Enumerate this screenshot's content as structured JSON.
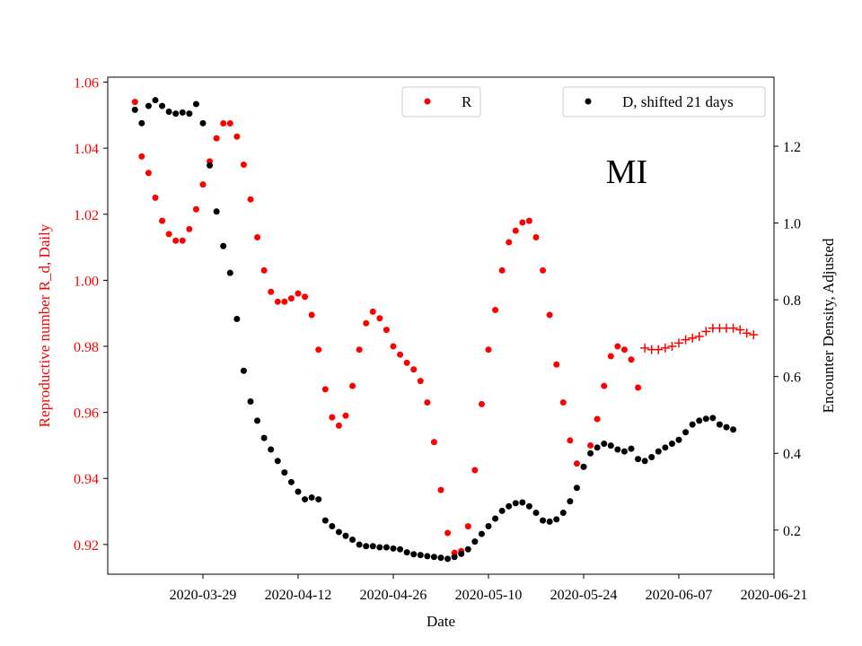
{
  "chart_data": {
    "type": "scatter",
    "annotation": "MI",
    "xlabel": "Date",
    "ylabel_left": "Reproductive number R_d, Daily",
    "ylabel_right": "Encounter Density, Adjusted",
    "x_ticks": [
      "2020-03-29",
      "2020-04-12",
      "2020-04-26",
      "2020-05-10",
      "2020-05-24",
      "2020-06-07",
      "2020-06-21"
    ],
    "y_left_ticks": [
      "0.92",
      "0.94",
      "0.96",
      "0.98",
      "1.00",
      "1.02",
      "1.04",
      "1.06"
    ],
    "y_right_ticks": [
      "0.2",
      "0.4",
      "0.6",
      "0.8",
      "1.0",
      "1.2"
    ],
    "ylim_left": [
      0.911,
      1.0615
    ],
    "ylim_right": [
      0.085,
      1.38
    ],
    "xlim": [
      "2020-03-15",
      "2020-06-21"
    ],
    "legend_left": {
      "label": "R",
      "color": "#ff0000",
      "placement": "top-center"
    },
    "legend_right": {
      "label": "D, shifted 21 days",
      "color": "#000000",
      "placement": "top-right"
    },
    "left_axis_color": "#ff0000",
    "right_axis_color": "#000000",
    "series": [
      {
        "name": "R",
        "axis": "left",
        "marker": "dot",
        "color": "#ff0000",
        "start_date": "2020-03-19",
        "values": [
          1.054,
          1.0375,
          1.0325,
          1.025,
          1.018,
          1.014,
          1.012,
          1.012,
          1.0155,
          1.0215,
          1.029,
          1.036,
          1.043,
          1.0475,
          1.0475,
          1.0435,
          1.035,
          1.0245,
          1.013,
          1.003,
          0.9965,
          0.9935,
          0.9935,
          0.9945,
          0.996,
          0.995,
          0.9895,
          0.979,
          0.967,
          0.9585,
          0.956,
          0.959,
          0.968,
          0.979,
          0.987,
          0.9905,
          0.9885,
          0.985,
          0.98,
          0.9775,
          0.975,
          0.973,
          0.9695,
          0.963,
          0.951,
          0.9365,
          0.9235,
          0.9175,
          0.918,
          0.9255,
          0.9425,
          0.9625,
          0.979,
          0.991,
          1.003,
          1.0115,
          1.015,
          1.0175,
          1.018,
          1.013,
          1.003,
          0.9895,
          0.9745,
          0.963,
          0.9515,
          0.9445,
          0.9435,
          0.95,
          0.958,
          0.968,
          0.977,
          0.98,
          0.979,
          0.976,
          0.9675
        ]
      },
      {
        "name": "R",
        "axis": "left",
        "marker": "plus",
        "color": "#ff0000",
        "start_date": "2020-06-02",
        "values": [
          0.9795,
          0.979,
          0.979,
          0.9795,
          0.98,
          0.981,
          0.982,
          0.9825,
          0.983,
          0.9845,
          0.9855,
          0.9855,
          0.9855,
          0.9855,
          0.985,
          0.984,
          0.9835
        ]
      },
      {
        "name": "D, shifted 21 days",
        "axis": "right",
        "marker": "dot",
        "color": "#000000",
        "start_date": "2020-03-19",
        "values": [
          1.295,
          1.26,
          1.305,
          1.32,
          1.305,
          1.29,
          1.285,
          1.288,
          1.285,
          1.31,
          1.26,
          1.15,
          1.03,
          0.94,
          0.87,
          0.75,
          0.615,
          0.535,
          0.485,
          0.44,
          0.41,
          0.38,
          0.35,
          0.325,
          0.3,
          0.28,
          0.285,
          0.28,
          0.225,
          0.21,
          0.195,
          0.185,
          0.175,
          0.162,
          0.158,
          0.158,
          0.155,
          0.155,
          0.152,
          0.15,
          0.142,
          0.137,
          0.135,
          0.132,
          0.13,
          0.128,
          0.125,
          0.13,
          0.138,
          0.15,
          0.17,
          0.19,
          0.21,
          0.23,
          0.25,
          0.262,
          0.27,
          0.272,
          0.262,
          0.245,
          0.225,
          0.222,
          0.228,
          0.245,
          0.275,
          0.31,
          0.365,
          0.4,
          0.415,
          0.425,
          0.42,
          0.41,
          0.405,
          0.412,
          0.385,
          0.38,
          0.39,
          0.405,
          0.415,
          0.425,
          0.435,
          0.455,
          0.475,
          0.485,
          0.49,
          0.492,
          0.475,
          0.468,
          0.462
        ]
      }
    ]
  }
}
